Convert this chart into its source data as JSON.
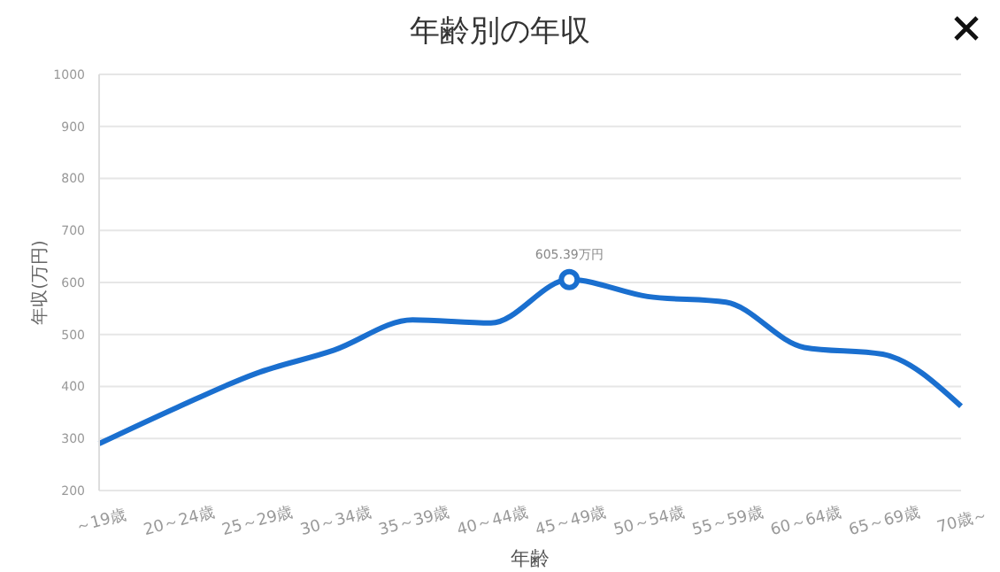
{
  "chart_data": {
    "type": "line",
    "title": "年齢別の年収",
    "xlabel": "年齢",
    "ylabel": "年収(万円)",
    "categories": [
      "～19歳",
      "20～24歳",
      "25～29歳",
      "30～34歳",
      "35～39歳",
      "40～44歳",
      "45～49歳",
      "50～54歳",
      "55～59歳",
      "60～64歳",
      "65～69歳",
      "70歳～"
    ],
    "series": [
      {
        "color": "#1a6fcf",
        "values": [
          290,
          360,
          425,
          470,
          528,
          522,
          605.39,
          573,
          562,
          475,
          462,
          362
        ],
        "value_labels": [
          null,
          null,
          null,
          null,
          null,
          null,
          "605.39万円",
          null,
          null,
          null,
          null,
          null
        ]
      }
    ],
    "ylim": [
      200,
      1000
    ],
    "yticks": [
      200,
      300,
      400,
      500,
      600,
      700,
      800,
      900,
      1000
    ],
    "grid": "y",
    "marker": "none",
    "line_style": "solid"
  }
}
